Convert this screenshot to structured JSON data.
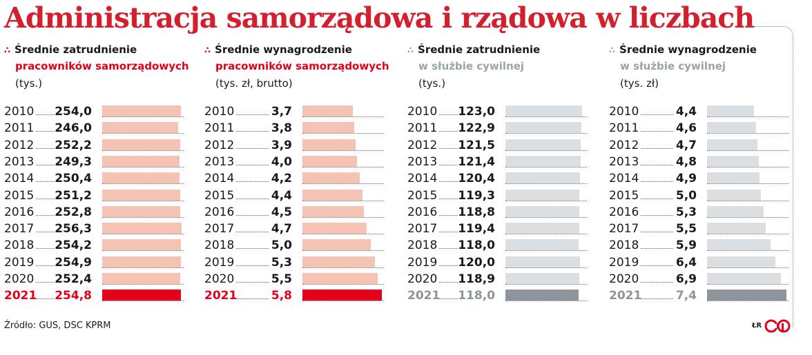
{
  "title": "Administracja samorządowa i rządowa w liczbach",
  "source": "Źródło: GUS, DSC KPRM",
  "author": "ŁR",
  "colors": {
    "title": "#d3202e",
    "red_accent": "#e2001a",
    "red_light": "#f5c3b3",
    "gray_accent": "#8c959b",
    "gray_light": "#dcdfe2",
    "gray_text": "#9ba3a8"
  },
  "chart_data": [
    {
      "type": "bar",
      "orientation": "horizontal",
      "header_line1": "Średnie zatrudnienie",
      "header_line2": "pracowników samorządowych",
      "unit": "(tys.)",
      "theme": "red",
      "categories": [
        "2010",
        "2011",
        "2012",
        "2013",
        "2014",
        "2015",
        "2016",
        "2017",
        "2018",
        "2019",
        "2020",
        "2021"
      ],
      "values": [
        254.0,
        246.0,
        252.2,
        249.3,
        250.4,
        251.2,
        252.8,
        256.3,
        254.2,
        254.9,
        252.4,
        254.8
      ],
      "labels": [
        "254,0",
        "246,0",
        "252,2",
        "249,3",
        "250,4",
        "251,2",
        "252,8",
        "256,3",
        "254,2",
        "254,9",
        "252,4",
        "254,8"
      ],
      "highlight": "2021",
      "xlim": [
        0,
        256.3
      ]
    },
    {
      "type": "bar",
      "orientation": "horizontal",
      "header_line1": "Średnie wynagrodzenie",
      "header_line2": "pracowników samorządowych",
      "unit": "(tys. zł, brutto)",
      "theme": "red",
      "categories": [
        "2010",
        "2011",
        "2012",
        "2013",
        "2014",
        "2015",
        "2016",
        "2017",
        "2018",
        "2019",
        "2020",
        "2021"
      ],
      "values": [
        3.7,
        3.8,
        3.9,
        4.0,
        4.2,
        4.4,
        4.5,
        4.7,
        5.0,
        5.3,
        5.5,
        5.8
      ],
      "labels": [
        "3,7",
        "3,8",
        "3,9",
        "4,0",
        "4,2",
        "4,4",
        "4,5",
        "4,7",
        "5,0",
        "5,3",
        "5,5",
        "5,8"
      ],
      "highlight": "2021",
      "xlim": [
        0,
        5.8
      ]
    },
    {
      "type": "bar",
      "orientation": "horizontal",
      "header_line1": "Średnie zatrudnienie",
      "header_line2": "w służbie cywilnej",
      "unit": "(tys.)",
      "theme": "gray",
      "categories": [
        "2010",
        "2011",
        "2012",
        "2013",
        "2014",
        "2015",
        "2016",
        "2017",
        "2018",
        "2019",
        "2020",
        "2021"
      ],
      "values": [
        123.0,
        122.9,
        121.5,
        121.4,
        120.4,
        119.3,
        118.8,
        119.4,
        118.0,
        120.0,
        118.9,
        118.0
      ],
      "labels": [
        "123,0",
        "122,9",
        "121,5",
        "121,4",
        "120,4",
        "119,3",
        "118,8",
        "119,4",
        "118,0",
        "120,0",
        "118,9",
        "118,0"
      ],
      "highlight": "2021",
      "xlim": [
        0,
        128
      ]
    },
    {
      "type": "bar",
      "orientation": "horizontal",
      "header_line1": "Średnie wynagrodzenie",
      "header_line2": "w służbie cywilnej",
      "unit": "(tys. zł)",
      "theme": "gray",
      "categories": [
        "2010",
        "2011",
        "2012",
        "2013",
        "2014",
        "2015",
        "2016",
        "2017",
        "2018",
        "2019",
        "2020",
        "2021"
      ],
      "values": [
        4.4,
        4.6,
        4.7,
        4.8,
        4.9,
        5.0,
        5.3,
        5.5,
        5.9,
        6.4,
        6.9,
        7.4
      ],
      "labels": [
        "4,4",
        "4,6",
        "4,7",
        "4,8",
        "4,9",
        "5,0",
        "5,3",
        "5,5",
        "5,9",
        "6,4",
        "6,9",
        "7,4"
      ],
      "highlight": "2021",
      "xlim": [
        0,
        7.4
      ]
    }
  ]
}
